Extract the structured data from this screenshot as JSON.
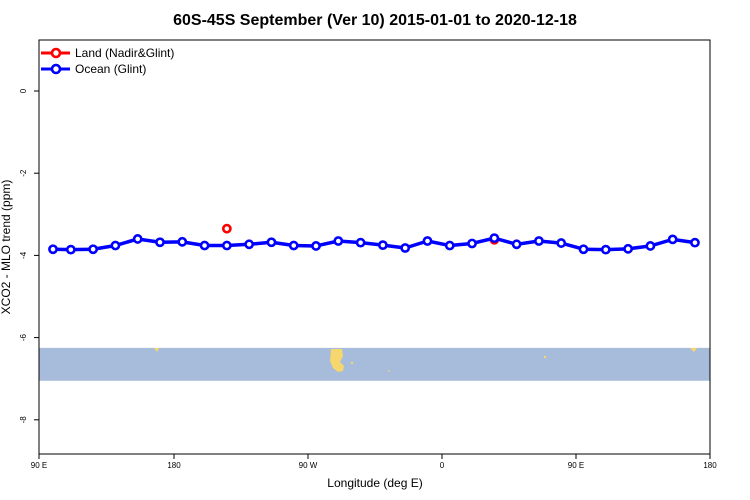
{
  "chart_data": {
    "type": "line",
    "title": "60S-45S September (Ver 10)   2015-01-01 to 2020-12-18",
    "xlabel": "Longitude (deg E)",
    "ylabel": "XCO2 - MLO trend (ppm)",
    "xlim": [
      90,
      450
    ],
    "ylim": [
      -9.0,
      1.3
    ],
    "xticks": [
      {
        "value": 90,
        "label": "90 E"
      },
      {
        "value": 180,
        "label": "180"
      },
      {
        "value": 270,
        "label": "90 W"
      },
      {
        "value": 360,
        "label": "0"
      },
      {
        "value": 450,
        "label": "90 E"
      },
      {
        "value": 540,
        "label": "180"
      }
    ],
    "yticks": [
      {
        "value": 0,
        "label": "0"
      },
      {
        "value": -2,
        "label": "-2"
      },
      {
        "value": -4,
        "label": "-4"
      },
      {
        "value": -6,
        "label": "-6"
      },
      {
        "value": -8,
        "label": "-8"
      }
    ],
    "legend_position": "top-left",
    "series": [
      {
        "name": "Land (Nadir&Glint)",
        "color": "#ff0000",
        "line": false,
        "points": [
          {
            "x": 176,
            "y": -3.35
          },
          {
            "x": 296,
            "y": -3.62
          },
          {
            "x": 536,
            "y": -3.35
          }
        ]
      },
      {
        "name": "Ocean (Glint)",
        "color": "#0000ff",
        "line": true,
        "points": [
          {
            "x": 98,
            "y": -3.85
          },
          {
            "x": 106,
            "y": -3.86
          },
          {
            "x": 116,
            "y": -3.85
          },
          {
            "x": 126,
            "y": -3.76
          },
          {
            "x": 136,
            "y": -3.6
          },
          {
            "x": 146,
            "y": -3.68
          },
          {
            "x": 156,
            "y": -3.67
          },
          {
            "x": 166,
            "y": -3.76
          },
          {
            "x": 176,
            "y": -3.76
          },
          {
            "x": 186,
            "y": -3.73
          },
          {
            "x": 196,
            "y": -3.68
          },
          {
            "x": 206,
            "y": -3.76
          },
          {
            "x": 216,
            "y": -3.77
          },
          {
            "x": 226,
            "y": -3.65
          },
          {
            "x": 236,
            "y": -3.69
          },
          {
            "x": 246,
            "y": -3.75
          },
          {
            "x": 256,
            "y": -3.82
          },
          {
            "x": 266,
            "y": -3.65
          },
          {
            "x": 276,
            "y": -3.76
          },
          {
            "x": 286,
            "y": -3.71
          },
          {
            "x": 296,
            "y": -3.58
          },
          {
            "x": 306,
            "y": -3.73
          },
          {
            "x": 316,
            "y": -3.65
          },
          {
            "x": 326,
            "y": -3.7
          },
          {
            "x": 336,
            "y": -3.85
          },
          {
            "x": 346,
            "y": -3.86
          },
          {
            "x": 356,
            "y": -3.84
          },
          {
            "x": 366,
            "y": -3.77
          },
          {
            "x": 376,
            "y": -3.61
          },
          {
            "x": 386,
            "y": -3.69
          }
        ]
      }
    ],
    "map_band": {
      "description_color": "#a7bcdb",
      "land_color": "#f5d76e",
      "lat_range_data_y": [
        -7.05,
        -6.25
      ]
    }
  }
}
